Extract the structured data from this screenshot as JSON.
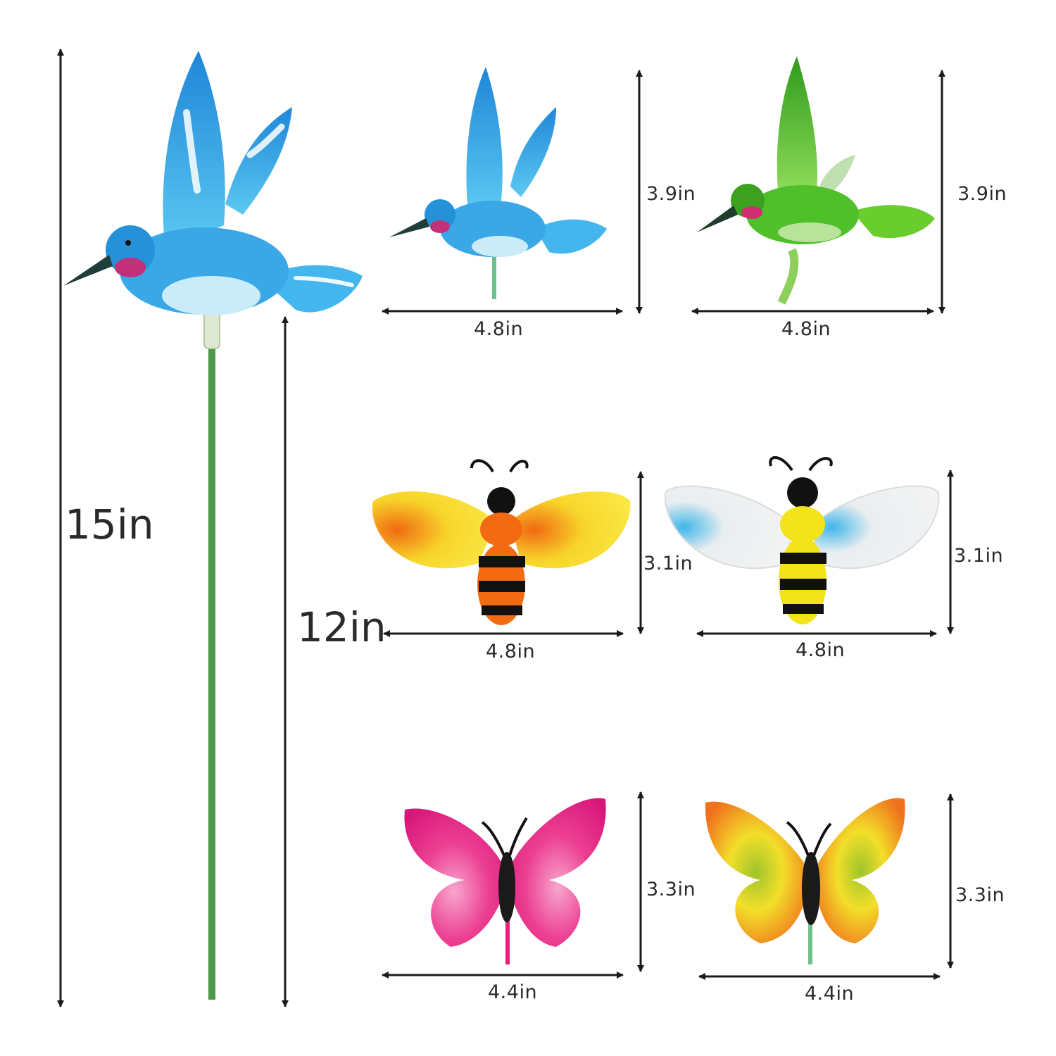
{
  "dimensions": {
    "overall_height": "15in",
    "stake_height": "12in",
    "hummingbird_blue": {
      "height": "3.9in",
      "width": "4.8in"
    },
    "hummingbird_green": {
      "height": "3.9in",
      "width": "4.8in"
    },
    "bee_orange": {
      "height": "3.1in",
      "width": "4.8in"
    },
    "bee_yellow": {
      "height": "3.1in",
      "width": "4.8in"
    },
    "butterfly_pink": {
      "height": "3.3in",
      "width": "4.4in"
    },
    "butterfly_orange": {
      "height": "3.3in",
      "width": "4.4in"
    }
  },
  "colors": {
    "hummingbird_blue": "#2f9fe0",
    "hummingbird_green": "#4fbf2a",
    "bee_orange_body": "#f26a12",
    "bee_yellow_body": "#f2e31a",
    "butterfly_pink": "#e8207a",
    "butterfly_orange": "#f3a81b",
    "stake_green": "#4f9a4a",
    "arrow": "#1a1a1a"
  }
}
